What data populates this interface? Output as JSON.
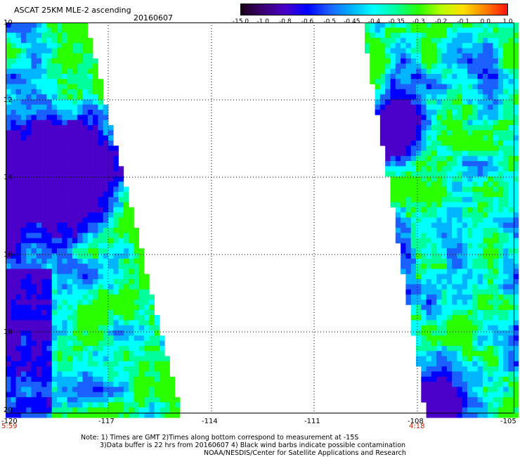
{
  "header": {
    "title": "ASCAT 25KM MLE-2 ascending",
    "date": "20160607"
  },
  "colorbar": {
    "labels": [
      "-15.0",
      "-1.0",
      "-0.8",
      "-0.6",
      "-0.5",
      "-0.45",
      "-0.4",
      "-0.35",
      "-0.3",
      "-0.2",
      "-0.1",
      "0.0",
      "1.0"
    ],
    "colors": [
      "#1a001a",
      "#3a0070",
      "#4a00c8",
      "#0000ff",
      "#1a60ff",
      "#00b4ff",
      "#00ffff",
      "#00ff9a",
      "#2aff00",
      "#b4ff00",
      "#ffe000",
      "#ff8000",
      "#ff1010"
    ]
  },
  "axes": {
    "lat_labels": [
      "10",
      "12",
      "14",
      "16",
      "18",
      "20"
    ],
    "lon_labels": [
      "-120",
      "-117",
      "-114",
      "-111",
      "-108",
      "-105"
    ],
    "lon_range": [
      -120,
      -105
    ],
    "lat_range": [
      10,
      20
    ]
  },
  "times": {
    "left": "5:59",
    "right": "4:18"
  },
  "notes": {
    "line1": "Note: 1) Times are GMT 2)Times along bottom correspond to measurement at -15S",
    "line2": "3)Data buffer is 22 hrs from 20160607 4) Black wind barbs indicate possible contamination",
    "line3": "NOAA/NESDIS/Center for Satellite Applications and Research"
  }
}
